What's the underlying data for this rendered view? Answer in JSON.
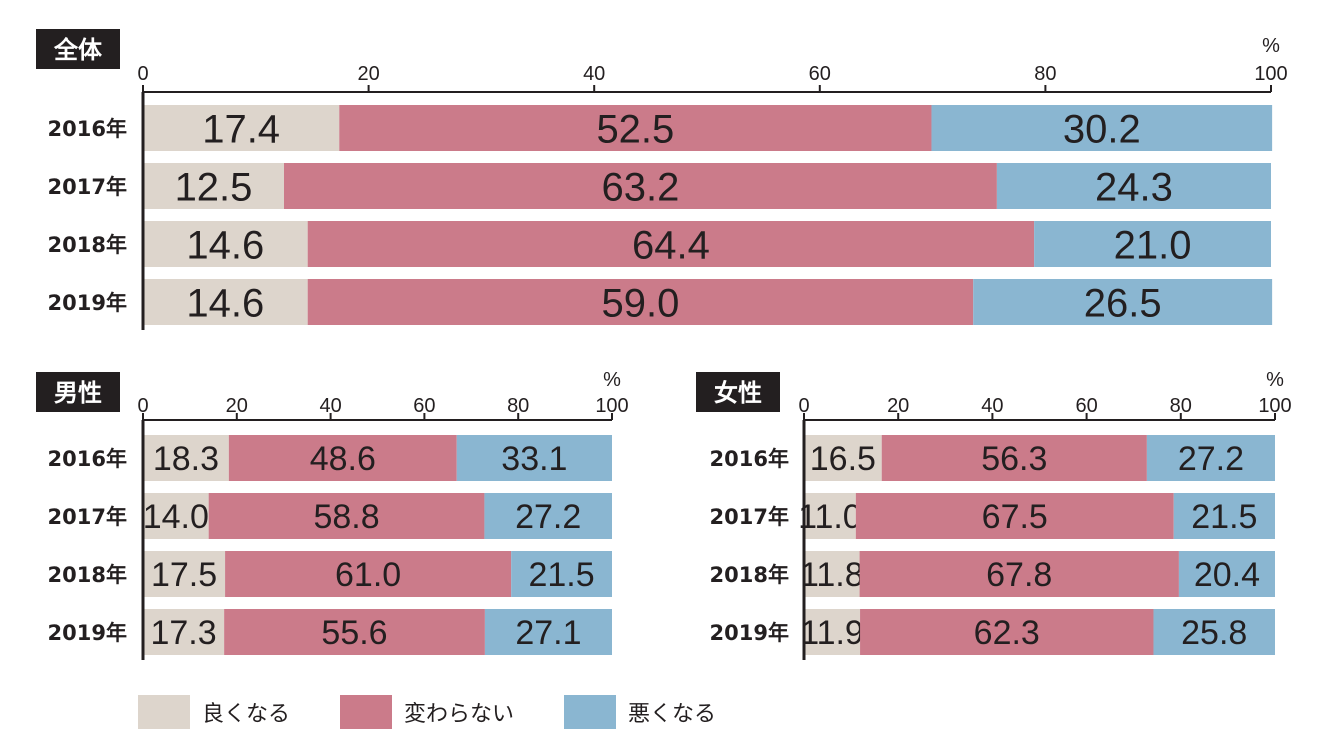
{
  "colors": {
    "better": "#ddd5cc",
    "same": "#cb7b8a",
    "worse": "#8ab6d1",
    "axis": "#231f20",
    "title_bg": "#231f20",
    "title_fg": "#ffffff"
  },
  "unit": "%",
  "legend": [
    {
      "key": "better",
      "label": "良くなる"
    },
    {
      "key": "same",
      "label": "変わらない"
    },
    {
      "key": "worse",
      "label": "悪くなる"
    }
  ],
  "chart_data": [
    {
      "type": "bar",
      "stacked": true,
      "orientation": "horizontal",
      "title": "全体",
      "categories": [
        "2016年",
        "2017年",
        "2018年",
        "2019年"
      ],
      "xlim": [
        0,
        100
      ],
      "xticks": [
        0,
        20,
        40,
        60,
        80,
        100
      ],
      "xlabel": "%",
      "series": [
        {
          "key": "better",
          "values": [
            17.4,
            12.5,
            14.6,
            14.6
          ]
        },
        {
          "key": "same",
          "values": [
            52.5,
            63.2,
            64.4,
            59.0
          ]
        },
        {
          "key": "worse",
          "values": [
            30.2,
            24.3,
            21.0,
            26.5
          ]
        }
      ]
    },
    {
      "type": "bar",
      "stacked": true,
      "orientation": "horizontal",
      "title": "男性",
      "categories": [
        "2016年",
        "2017年",
        "2018年",
        "2019年"
      ],
      "xlim": [
        0,
        100
      ],
      "xticks": [
        0,
        20,
        40,
        60,
        80,
        100
      ],
      "xlabel": "%",
      "series": [
        {
          "key": "better",
          "values": [
            18.3,
            14.0,
            17.5,
            17.3
          ]
        },
        {
          "key": "same",
          "values": [
            48.6,
            58.8,
            61.0,
            55.6
          ]
        },
        {
          "key": "worse",
          "values": [
            33.1,
            27.2,
            21.5,
            27.1
          ]
        }
      ]
    },
    {
      "type": "bar",
      "stacked": true,
      "orientation": "horizontal",
      "title": "女性",
      "categories": [
        "2016年",
        "2017年",
        "2018年",
        "2019年"
      ],
      "xlim": [
        0,
        100
      ],
      "xticks": [
        0,
        20,
        40,
        60,
        80,
        100
      ],
      "xlabel": "%",
      "series": [
        {
          "key": "better",
          "values": [
            16.5,
            11.0,
            11.8,
            11.9
          ]
        },
        {
          "key": "same",
          "values": [
            56.3,
            67.5,
            67.8,
            62.3
          ]
        },
        {
          "key": "worse",
          "values": [
            27.2,
            21.5,
            20.4,
            25.8
          ]
        }
      ]
    }
  ]
}
